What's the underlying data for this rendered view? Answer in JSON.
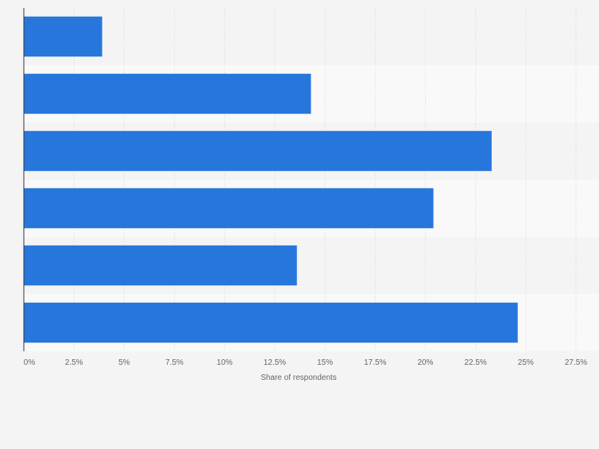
{
  "chart_data": {
    "type": "bar",
    "orientation": "horizontal",
    "categories": [
      "",
      "",
      "",
      "",
      "",
      ""
    ],
    "values": [
      3.9,
      14.3,
      23.3,
      20.4,
      13.6,
      24.6
    ],
    "xlabel": "Share of respondents",
    "ylabel": "",
    "xlim": [
      0,
      27.5
    ],
    "xticks": [
      "0%",
      "2.5%",
      "5%",
      "7.5%",
      "10%",
      "12.5%",
      "15%",
      "17.5%",
      "20%",
      "22.5%",
      "25%",
      "27.5%"
    ],
    "grid": true,
    "legend": "none",
    "colors": {
      "bar": "#2776dc",
      "band_dark": "#f4f4f4",
      "band_light": "#f9f9f9",
      "grid": "#d8d8d8",
      "axis": "#333333",
      "tick_text": "#666666"
    }
  }
}
